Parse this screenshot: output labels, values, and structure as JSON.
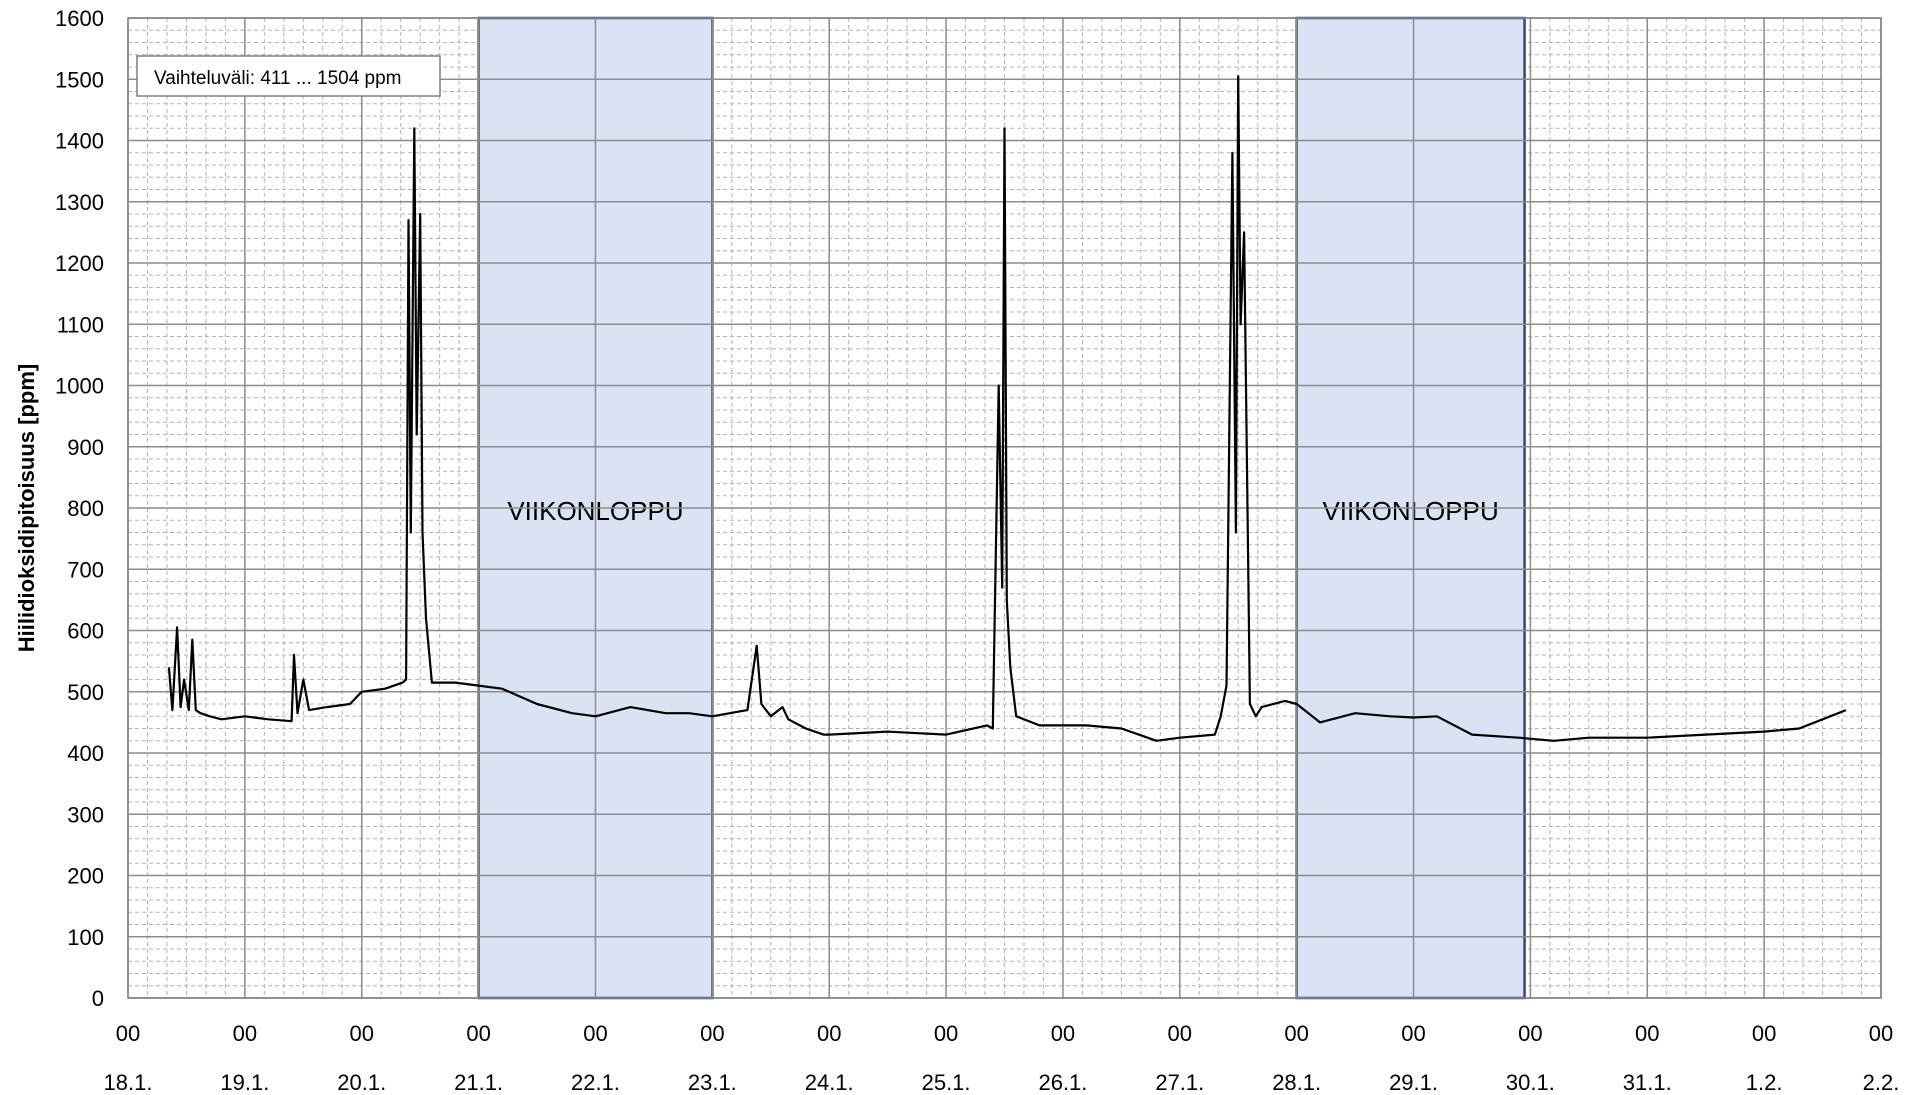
{
  "chart_data": {
    "type": "line",
    "title": "",
    "ylabel": "Hiilidioksidipitoisuus  [ppm]",
    "xlabel": "",
    "ylim": [
      0,
      1600
    ],
    "y_ticks": [
      0,
      100,
      200,
      300,
      400,
      500,
      600,
      700,
      800,
      900,
      1000,
      1100,
      1200,
      1300,
      1400,
      1500,
      1600
    ],
    "x_tick_time_labels": [
      "00",
      "00",
      "00",
      "00",
      "00",
      "00",
      "00",
      "00",
      "00",
      "00",
      "00",
      "00",
      "00",
      "00",
      "00",
      "00"
    ],
    "x_tick_date_labels": [
      "18.1.",
      "19.1.",
      "20.1.",
      "21.1.",
      "22.1.",
      "23.1.",
      "24.1.",
      "25.1.",
      "26.1.",
      "27.1.",
      "28.1.",
      "29.1.",
      "30.1.",
      "31.1.",
      "1.2.",
      "2.2."
    ],
    "grid": true,
    "range_annotation": "Vaihteluväli: 411 ... 1504 ppm",
    "shaded_regions": [
      {
        "label": "VIIKONLOPPU",
        "from_day": 3,
        "to_day": 5
      },
      {
        "label": "VIIKONLOPPU",
        "from_day": 10,
        "to_day": 11.95
      }
    ],
    "series": [
      {
        "x_days": [
          0.35,
          0.38,
          0.42,
          0.45,
          0.48,
          0.52,
          0.55,
          0.58,
          0.62,
          0.7,
          0.8,
          1.0,
          1.2,
          1.4,
          1.42,
          1.45,
          1.5,
          1.55,
          1.7,
          1.9,
          2.0,
          2.2,
          2.35,
          2.38,
          2.4,
          2.42,
          2.45,
          2.47,
          2.5,
          2.52,
          2.55,
          2.6,
          2.8,
          3.0,
          3.2,
          3.5,
          3.8,
          4.0,
          4.3,
          4.6,
          4.8,
          5.0,
          5.3,
          5.38,
          5.42,
          5.5,
          5.6,
          5.65,
          5.8,
          5.95,
          6.0,
          6.5,
          7.0,
          7.35,
          7.4,
          7.45,
          7.48,
          7.5,
          7.52,
          7.55,
          7.6,
          7.8,
          8.2,
          8.5,
          8.8,
          9.0,
          9.3,
          9.35,
          9.4,
          9.45,
          9.48,
          9.5,
          9.52,
          9.55,
          9.6,
          9.65,
          9.7,
          9.9,
          10.0,
          10.2,
          10.5,
          10.8,
          11.0,
          11.2,
          11.5,
          11.9,
          12.2,
          12.5,
          13.0,
          13.5,
          14.0,
          14.3,
          14.5,
          14.7
        ],
        "y": [
          540,
          470,
          605,
          475,
          520,
          470,
          585,
          470,
          465,
          460,
          455,
          460,
          455,
          452,
          560,
          465,
          520,
          470,
          475,
          480,
          500,
          505,
          515,
          520,
          1270,
          760,
          1420,
          920,
          1280,
          760,
          620,
          515,
          515,
          510,
          505,
          480,
          465,
          460,
          475,
          465,
          465,
          460,
          470,
          575,
          480,
          460,
          475,
          455,
          440,
          430,
          430,
          435,
          430,
          445,
          440,
          1000,
          670,
          1420,
          650,
          540,
          460,
          445,
          445,
          440,
          420,
          425,
          430,
          460,
          510,
          1380,
          760,
          1505,
          1100,
          1250,
          480,
          460,
          475,
          485,
          480,
          450,
          465,
          460,
          458,
          460,
          430,
          425,
          420,
          425,
          425,
          430,
          435,
          440,
          455,
          470
        ]
      }
    ]
  }
}
